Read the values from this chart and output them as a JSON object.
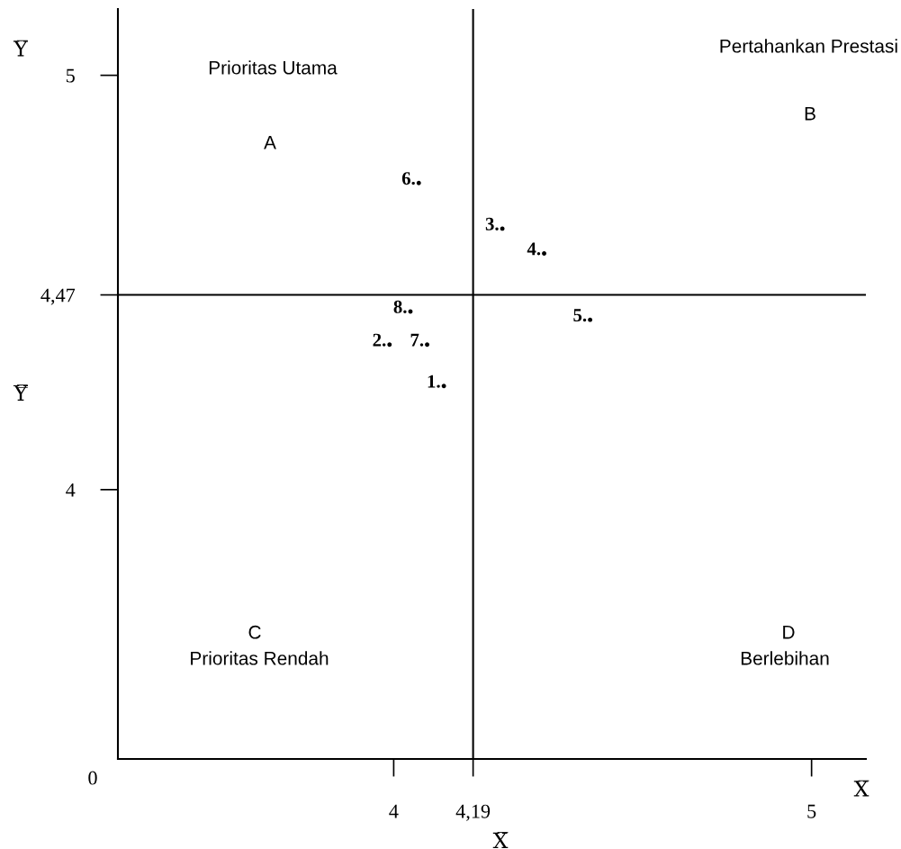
{
  "chart_data": {
    "type": "scatter",
    "xlabel": "X̅",
    "ylabel": "Y̿",
    "xlim": [
      3.34,
      5.13
    ],
    "ylim": [
      3.35,
      5.16
    ],
    "xticks": [
      4,
      {
        "value": 4.19,
        "label": "4,19"
      },
      5
    ],
    "yticks": [
      4,
      {
        "value": 4.47,
        "label": "4,47"
      },
      5
    ],
    "ref_lines": [
      {
        "axis": "x",
        "value": 4.19,
        "color": "#000000"
      },
      {
        "axis": "y",
        "value": 4.47,
        "color": "#000000"
      }
    ],
    "marker": "circle",
    "grid": false,
    "legend": false,
    "series": [
      {
        "name": "1.",
        "color": "#000000",
        "x": [
          4.12
        ],
        "values": [
          4.25
        ]
      },
      {
        "name": "2.",
        "color": "#000000",
        "x": [
          3.99
        ],
        "values": [
          4.35
        ]
      },
      {
        "name": "3.",
        "color": "#000000",
        "x": [
          4.26
        ],
        "values": [
          4.63
        ]
      },
      {
        "name": "4.",
        "color": "#000000",
        "x": [
          4.36
        ],
        "values": [
          4.57
        ]
      },
      {
        "name": "5.",
        "color": "#000000",
        "x": [
          4.47
        ],
        "values": [
          4.41
        ]
      },
      {
        "name": "6.",
        "color": "#000000",
        "x": [
          4.06
        ],
        "values": [
          4.74
        ]
      },
      {
        "name": "7.",
        "color": "#000000",
        "x": [
          4.08
        ],
        "values": [
          4.35
        ]
      },
      {
        "name": "8.",
        "color": "#000000",
        "x": [
          4.04
        ],
        "values": [
          4.43
        ]
      }
    ],
    "annotations": [
      "Prioritas Utama",
      "A",
      "Pertahankan Prestasi",
      "B",
      "C",
      "Prioritas Rendah",
      "D",
      "Berlebihan",
      "0",
      "X̅",
      "Y̅"
    ]
  }
}
